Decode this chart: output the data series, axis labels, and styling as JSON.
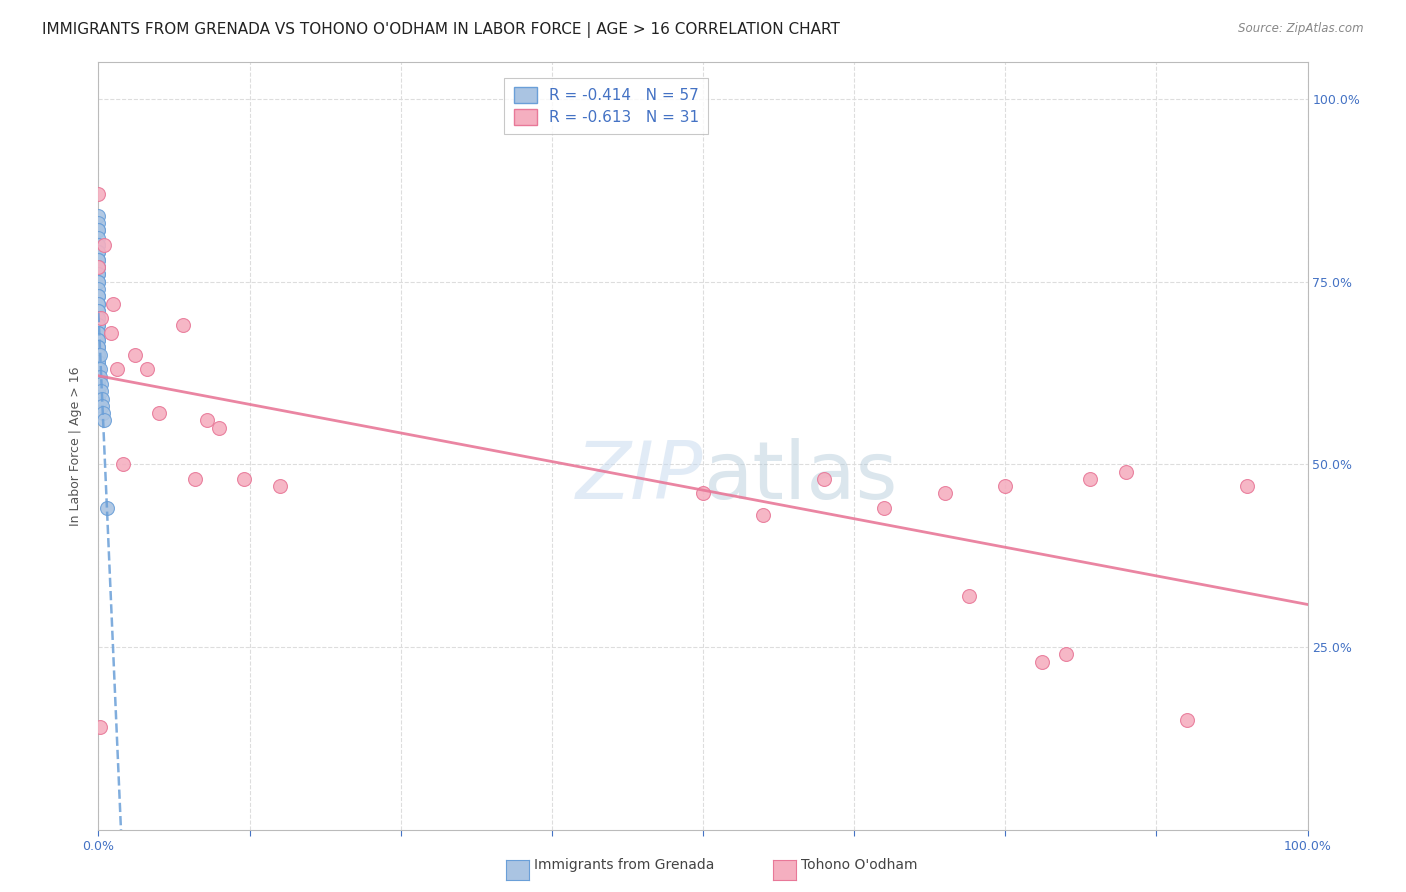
{
  "title": "IMMIGRANTS FROM GRENADA VS TOHONO O'ODHAM IN LABOR FORCE | AGE > 16 CORRELATION CHART",
  "source": "Source: ZipAtlas.com",
  "ylabel": "In Labor Force | Age > 16",
  "x_lim": [
    0.0,
    1.0
  ],
  "y_lim": [
    0.0,
    1.05
  ],
  "watermark": "ZIPatlas",
  "legend_r1": "R = -0.414",
  "legend_n1": "N = 57",
  "legend_r2": "R = -0.613",
  "legend_n2": "N = 31",
  "grenada_color": "#aac4e2",
  "grenada_edge": "#6a9fd8",
  "tohono_color": "#f5afc0",
  "tohono_edge": "#e87898",
  "trendline_grenada_color": "#6a9fd8",
  "trendline_tohono_color": "#e87898",
  "grid_color": "#dddddd",
  "background_color": "#ffffff",
  "title_fontsize": 11,
  "axis_label_fontsize": 9,
  "tick_fontsize": 9,
  "grenada_x": [
    0.0,
    0.0,
    0.0,
    0.0,
    0.0,
    0.0,
    0.0,
    0.0,
    0.0,
    0.0,
    0.0,
    0.0,
    0.0,
    0.0,
    0.0,
    0.0,
    0.0,
    0.0,
    0.0,
    0.0,
    0.0,
    0.0,
    0.0,
    0.0,
    0.0,
    0.0,
    0.0,
    0.0,
    0.0,
    0.0,
    0.0,
    0.0,
    0.0,
    0.0,
    0.0,
    0.0,
    0.0,
    0.0,
    0.0,
    0.0,
    0.0,
    0.0,
    0.0,
    0.0,
    0.0,
    0.0,
    0.0,
    0.001,
    0.001,
    0.001,
    0.002,
    0.002,
    0.003,
    0.003,
    0.004,
    0.005,
    0.007
  ],
  "grenada_y": [
    0.84,
    0.83,
    0.82,
    0.82,
    0.81,
    0.8,
    0.8,
    0.79,
    0.79,
    0.78,
    0.78,
    0.77,
    0.77,
    0.76,
    0.76,
    0.75,
    0.75,
    0.74,
    0.73,
    0.73,
    0.72,
    0.72,
    0.71,
    0.71,
    0.7,
    0.7,
    0.69,
    0.69,
    0.68,
    0.68,
    0.67,
    0.67,
    0.66,
    0.66,
    0.65,
    0.65,
    0.64,
    0.64,
    0.63,
    0.63,
    0.62,
    0.62,
    0.61,
    0.6,
    0.6,
    0.59,
    0.59,
    0.65,
    0.63,
    0.62,
    0.61,
    0.6,
    0.59,
    0.58,
    0.57,
    0.56,
    0.44
  ],
  "tohono_x": [
    0.0,
    0.0,
    0.001,
    0.002,
    0.005,
    0.01,
    0.012,
    0.015,
    0.02,
    0.03,
    0.04,
    0.05,
    0.07,
    0.08,
    0.09,
    0.1,
    0.12,
    0.15,
    0.5,
    0.55,
    0.6,
    0.65,
    0.7,
    0.72,
    0.75,
    0.78,
    0.8,
    0.82,
    0.85,
    0.9,
    0.95
  ],
  "tohono_y": [
    0.87,
    0.77,
    0.14,
    0.7,
    0.8,
    0.68,
    0.72,
    0.63,
    0.5,
    0.65,
    0.63,
    0.57,
    0.69,
    0.48,
    0.56,
    0.55,
    0.48,
    0.47,
    0.46,
    0.43,
    0.48,
    0.44,
    0.46,
    0.32,
    0.47,
    0.23,
    0.24,
    0.48,
    0.49,
    0.15,
    0.47
  ]
}
